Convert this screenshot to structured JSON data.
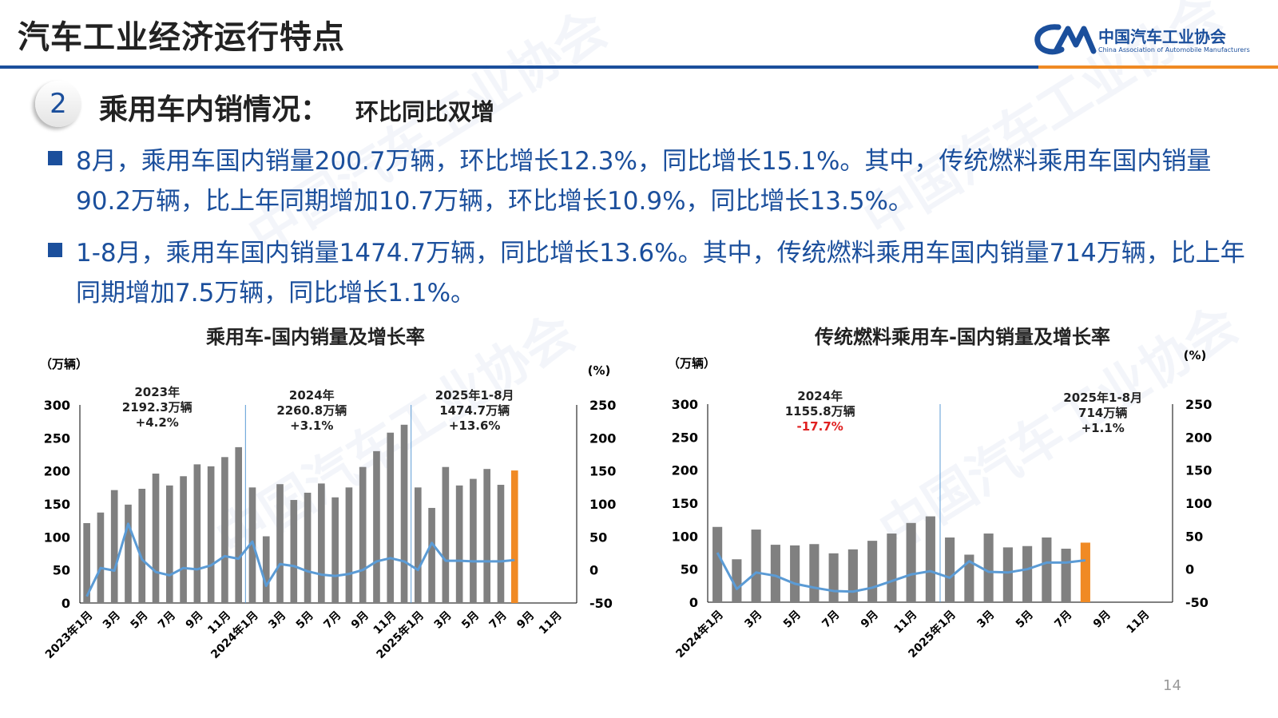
{
  "page_title": "汽车工业经济运行特点",
  "logo": {
    "cn": "中国汽车工业协会",
    "en": "China Association of Automobile Manufacturers"
  },
  "section": {
    "number": "2",
    "title": "乘用车内销情况：",
    "subtitle": "环比同比双增"
  },
  "bullets": [
    "8月，乘用车国内销量200.7万辆，环比增长12.3%，同比增长15.1%。其中，传统燃料乘用车国内销量90.2万辆，比上年同期增加10.7万辆，环比增长10.9%，同比增长13.5%。",
    "1-8月，乘用车国内销量1474.7万辆，同比增长13.6%。其中，传统燃料乘用车国内销量714万辆，比上年同期增加7.5万辆，同比增长1.1%。"
  ],
  "page_number": "14",
  "colors": {
    "bar": "#808080",
    "highlight": "#f08a24",
    "line": "#5b9bd5",
    "brand": "#1b4f9c",
    "negative": "#e02020"
  },
  "chart_data": [
    {
      "type": "bar",
      "title": "乘用车-国内销量及增长率",
      "ylabel_left": "（万辆）",
      "ylabel_right": "(%)",
      "ylim_left": [
        0,
        300
      ],
      "ylim_right": [
        -50,
        250
      ],
      "yticks_left": [
        "0",
        "50",
        "100",
        "150",
        "200",
        "250",
        "300"
      ],
      "yticks_right": [
        "-50",
        "0",
        "50",
        "100",
        "150",
        "200",
        "250"
      ],
      "tick_labels": [
        "2023年1月",
        "3月",
        "5月",
        "7月",
        "9月",
        "11月",
        "2024年1月",
        "3月",
        "5月",
        "7月",
        "9月",
        "11月",
        "2025年1月",
        "3月",
        "5月",
        "7月",
        "9月",
        "11月"
      ],
      "bar_values": [
        121,
        137,
        171,
        149,
        173,
        196,
        178,
        192,
        210,
        207,
        221,
        236,
        175,
        101,
        180,
        156,
        167,
        181,
        160,
        175,
        206,
        230,
        258,
        270,
        175,
        144,
        206,
        178,
        188,
        203,
        179,
        200.7
      ],
      "highlight_index": 31,
      "growth_rate": [
        -40,
        3,
        -1,
        70,
        16,
        -3,
        -8,
        3,
        1,
        7,
        21,
        17,
        43,
        -24,
        9,
        6,
        -2,
        -7,
        -9,
        -6,
        0,
        13,
        18,
        13,
        0,
        41,
        14,
        14,
        13,
        13,
        13,
        15.1
      ],
      "annotations": [
        {
          "lines": [
            "2023年",
            "2192.3万辆",
            "+4.2%"
          ],
          "color": "#222222"
        },
        {
          "lines": [
            "2024年",
            "2260.8万辆",
            "+3.1%"
          ],
          "color": "#222222"
        },
        {
          "lines": [
            "2025年1-8月",
            "1474.7万辆",
            "+13.6%"
          ],
          "color": "#222222"
        }
      ]
    },
    {
      "type": "bar",
      "title": "传统燃料乘用车-国内销量及增长率",
      "ylabel_left": "（万辆）",
      "ylabel_right": "(%)",
      "ylim_left": [
        0,
        300
      ],
      "ylim_right": [
        -50,
        250
      ],
      "yticks_left": [
        "0",
        "50",
        "100",
        "150",
        "200",
        "250",
        "300"
      ],
      "yticks_right": [
        "-50",
        "0",
        "50",
        "100",
        "150",
        "200",
        "250"
      ],
      "tick_labels": [
        "2024年1月",
        "3月",
        "5月",
        "7月",
        "9月",
        "11月",
        "2025年1月",
        "3月",
        "5月",
        "7月",
        "9月",
        "11月"
      ],
      "bar_values": [
        114,
        65,
        110,
        87,
        86,
        88,
        74,
        80,
        93,
        104,
        120,
        130,
        98,
        72,
        104,
        83,
        85,
        98,
        81,
        90.2
      ],
      "highlight_index": 19,
      "growth_rate": [
        25,
        -30,
        -5,
        -10,
        -22,
        -28,
        -33,
        -34,
        -28,
        -18,
        -8,
        -3,
        -13,
        12,
        -4,
        -5,
        0,
        10,
        10,
        13.5
      ],
      "annotations": [
        {
          "lines": [
            "2024年",
            "1155.8万辆",
            "-17.7%"
          ],
          "color": "#e02020"
        },
        {
          "lines": [
            "2025年1-8月",
            "714万辆",
            "+1.1%"
          ],
          "color": "#222222"
        }
      ]
    }
  ]
}
